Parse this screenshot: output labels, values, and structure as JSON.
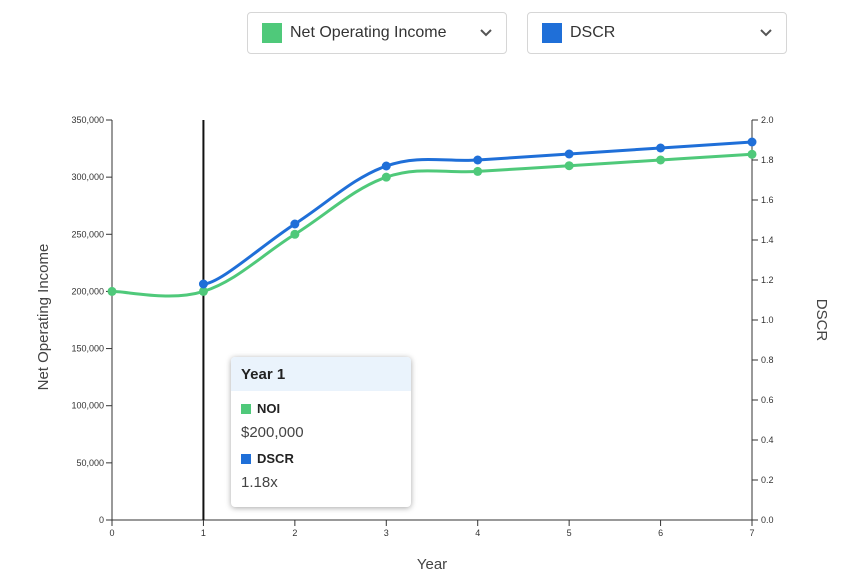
{
  "selectors": {
    "left": {
      "label": "Net Operating Income",
      "color": "#4fc97a",
      "icon": "chevron-down-icon"
    },
    "right": {
      "label": "DSCR",
      "color": "#1f6fd8",
      "icon": "chevron-down-icon"
    }
  },
  "chart_data": {
    "type": "line",
    "xlabel": "Year",
    "ylabel": "Net Operating Income",
    "y2label": "DSCR",
    "x": [
      0,
      1,
      2,
      3,
      4,
      5,
      6,
      7
    ],
    "xlim": [
      0,
      7
    ],
    "ylim": [
      0,
      350000
    ],
    "y2lim": [
      0,
      2.0
    ],
    "yticks": [
      "0",
      "50,000",
      "100,000",
      "150,000",
      "200,000",
      "250,000",
      "300,000",
      "350,000"
    ],
    "y2ticks": [
      "0.0",
      "0.2",
      "0.4",
      "0.6",
      "0.8",
      "1.0",
      "1.2",
      "1.4",
      "1.6",
      "1.8",
      "2.0"
    ],
    "xticks": [
      "0",
      "1",
      "2",
      "3",
      "4",
      "5",
      "6",
      "7"
    ],
    "series": [
      {
        "name": "Net Operating Income",
        "axis": "left",
        "color": "#4fc97a",
        "values": [
          200000,
          200000,
          250000,
          300000,
          305000,
          310000,
          315000,
          320000
        ]
      },
      {
        "name": "DSCR",
        "axis": "right",
        "color": "#1f6fd8",
        "values": [
          null,
          1.18,
          1.48,
          1.77,
          1.8,
          1.83,
          1.86,
          1.89
        ]
      }
    ],
    "highlight_x": 1,
    "grid": false
  },
  "tooltip": {
    "title": "Year 1",
    "noi_label": "NOI",
    "noi_value": "$200,000",
    "dscr_label": "DSCR",
    "dscr_value": "1.18x"
  }
}
